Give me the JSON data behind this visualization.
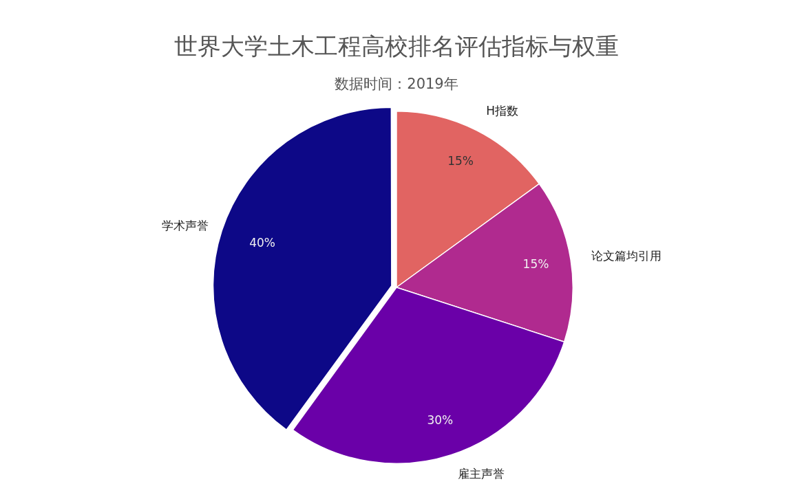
{
  "chart_data": {
    "type": "pie",
    "title": "世界大学土木工程高校排名评估指标与权重",
    "subtitle": "数据时间：2019年",
    "categories": [
      "H指数",
      "论文篇均引用",
      "雇主声誉",
      "学术声誉"
    ],
    "values": [
      15,
      15,
      30,
      40
    ],
    "colors": [
      "#e16462",
      "#b02a8f",
      "#6a00a8",
      "#0d0887"
    ],
    "value_labels": [
      "15%",
      "15%",
      "30%",
      "40%"
    ],
    "legend": false
  }
}
